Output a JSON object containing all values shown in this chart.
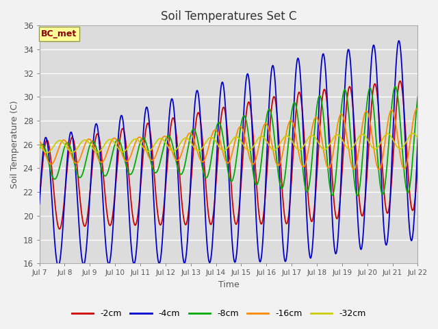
{
  "title": "Soil Temperatures Set C",
  "xlabel": "Time",
  "ylabel": "Soil Temperature (C)",
  "ylim": [
    16,
    36
  ],
  "xlim": [
    0,
    15
  ],
  "annotation": "BC_met",
  "annotation_color": "#8B0000",
  "annotation_bg": "#FFFF99",
  "plot_bg": "#DCDCDC",
  "series_colors": {
    "-2cm": "#CC0000",
    "-4cm": "#0000CC",
    "-8cm": "#00AA00",
    "-16cm": "#FF8800",
    "-32cm": "#CCCC00"
  },
  "xtick_labels": [
    "Jul 7",
    "Jul 8",
    "Jul 9",
    "Jul 10",
    "Jul 11",
    "Jul 12",
    "Jul 13",
    "Jul 14",
    "Jul 15",
    "Jul 16",
    "Jul 17",
    "Jul 18",
    "Jul 19",
    "Jul 20",
    "Jul 21",
    "Jul 22"
  ],
  "xtick_positions": [
    0,
    1,
    2,
    3,
    4,
    5,
    6,
    7,
    8,
    9,
    10,
    11,
    12,
    13,
    14,
    15
  ],
  "ytick_labels": [
    16,
    18,
    20,
    22,
    24,
    26,
    28,
    30,
    32,
    34,
    36
  ],
  "legend_order": [
    "-2cm",
    "-4cm",
    "-8cm",
    "-16cm",
    "-32cm"
  ]
}
